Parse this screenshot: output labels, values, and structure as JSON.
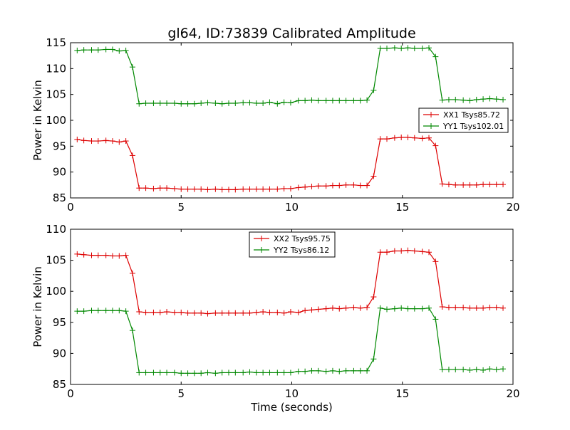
{
  "chart_data": [
    {
      "type": "line",
      "title": "gl64, ID:73839 Calibrated Amplitude",
      "xlabel": "",
      "ylabel": "Power in Kelvin",
      "xlim": [
        0,
        20
      ],
      "ylim": [
        85,
        115
      ],
      "xticks": [
        "0",
        "5",
        "10",
        "15",
        "20"
      ],
      "yticks": [
        "85",
        "90",
        "95",
        "100",
        "105",
        "110",
        "115"
      ],
      "grid": false,
      "legend_position": "center-right",
      "x": [
        0.3,
        0.6,
        0.95,
        1.25,
        1.6,
        1.9,
        2.2,
        2.5,
        2.8,
        3.1,
        3.4,
        3.75,
        4.05,
        4.35,
        4.7,
        5.0,
        5.3,
        5.6,
        5.9,
        6.2,
        6.55,
        6.85,
        7.15,
        7.45,
        7.8,
        8.1,
        8.4,
        8.7,
        9.0,
        9.35,
        9.65,
        9.95,
        10.3,
        10.6,
        10.9,
        11.2,
        11.55,
        11.85,
        12.15,
        12.45,
        12.8,
        13.1,
        13.4,
        13.7,
        14.0,
        14.3,
        14.65,
        14.95,
        15.25,
        15.55,
        15.9,
        16.2,
        16.5,
        16.8,
        17.1,
        17.4,
        17.75,
        18.05,
        18.35,
        18.65,
        18.95,
        19.25,
        19.55
      ],
      "series": [
        {
          "name": "XX1 Tsys85.72",
          "color": "#dd0000",
          "values": [
            96.3,
            96.1,
            96.0,
            96.0,
            96.1,
            96.0,
            95.8,
            96.0,
            93.2,
            86.9,
            86.9,
            86.8,
            86.9,
            86.9,
            86.8,
            86.7,
            86.7,
            86.7,
            86.7,
            86.6,
            86.7,
            86.6,
            86.6,
            86.6,
            86.7,
            86.7,
            86.7,
            86.7,
            86.7,
            86.7,
            86.8,
            86.8,
            87.0,
            87.1,
            87.2,
            87.3,
            87.3,
            87.4,
            87.4,
            87.5,
            87.5,
            87.4,
            87.4,
            89.2,
            96.4,
            96.4,
            96.6,
            96.7,
            96.7,
            96.6,
            96.5,
            96.6,
            95.1,
            87.7,
            87.6,
            87.5,
            87.5,
            87.5,
            87.5,
            87.6,
            87.6,
            87.6,
            87.6
          ]
        },
        {
          "name": "YY1 Tsys102.01",
          "color": "#008800",
          "values": [
            113.5,
            113.6,
            113.6,
            113.6,
            113.7,
            113.7,
            113.4,
            113.5,
            110.3,
            103.2,
            103.3,
            103.3,
            103.3,
            103.3,
            103.3,
            103.2,
            103.2,
            103.2,
            103.3,
            103.4,
            103.3,
            103.2,
            103.3,
            103.3,
            103.4,
            103.4,
            103.3,
            103.3,
            103.5,
            103.2,
            103.5,
            103.4,
            103.8,
            103.8,
            103.9,
            103.8,
            103.8,
            103.8,
            103.8,
            103.8,
            103.8,
            103.8,
            103.9,
            105.8,
            113.9,
            113.9,
            114.0,
            113.9,
            114.0,
            113.9,
            113.9,
            114.0,
            112.3,
            103.9,
            104.0,
            104.0,
            103.9,
            103.8,
            104.0,
            104.1,
            104.2,
            104.1,
            104.0
          ]
        }
      ]
    },
    {
      "type": "line",
      "title": "",
      "xlabel": "Time (seconds)",
      "ylabel": "Power in Kelvin",
      "xlim": [
        0,
        20
      ],
      "ylim": [
        85,
        110
      ],
      "xticks": [
        "0",
        "5",
        "10",
        "15",
        "20"
      ],
      "yticks": [
        "85",
        "90",
        "95",
        "100",
        "105",
        "110"
      ],
      "grid": false,
      "legend_position": "top-center",
      "x": [
        0.3,
        0.6,
        0.95,
        1.25,
        1.6,
        1.9,
        2.2,
        2.5,
        2.8,
        3.1,
        3.4,
        3.75,
        4.05,
        4.35,
        4.7,
        5.0,
        5.3,
        5.6,
        5.9,
        6.2,
        6.55,
        6.85,
        7.15,
        7.45,
        7.8,
        8.1,
        8.4,
        8.7,
        9.0,
        9.35,
        9.65,
        9.95,
        10.3,
        10.6,
        10.9,
        11.2,
        11.55,
        11.85,
        12.15,
        12.45,
        12.8,
        13.1,
        13.4,
        13.7,
        14.0,
        14.3,
        14.65,
        14.95,
        15.25,
        15.55,
        15.9,
        16.2,
        16.5,
        16.8,
        17.1,
        17.4,
        17.75,
        18.05,
        18.35,
        18.65,
        18.95,
        19.25,
        19.55
      ],
      "series": [
        {
          "name": "XX2 Tsys95.75",
          "color": "#dd0000",
          "values": [
            106.0,
            105.9,
            105.8,
            105.8,
            105.8,
            105.7,
            105.7,
            105.8,
            102.9,
            96.7,
            96.6,
            96.6,
            96.6,
            96.7,
            96.6,
            96.6,
            96.5,
            96.5,
            96.5,
            96.4,
            96.5,
            96.5,
            96.5,
            96.5,
            96.5,
            96.5,
            96.6,
            96.7,
            96.6,
            96.6,
            96.5,
            96.7,
            96.6,
            96.9,
            97.0,
            97.1,
            97.2,
            97.3,
            97.2,
            97.3,
            97.4,
            97.3,
            97.4,
            99.1,
            106.3,
            106.3,
            106.5,
            106.5,
            106.6,
            106.5,
            106.4,
            106.3,
            104.8,
            97.5,
            97.4,
            97.4,
            97.4,
            97.3,
            97.3,
            97.3,
            97.4,
            97.4,
            97.3
          ]
        },
        {
          "name": "YY2 Tsys86.12",
          "color": "#008800",
          "values": [
            96.8,
            96.8,
            96.9,
            96.9,
            96.9,
            96.9,
            96.9,
            96.8,
            93.7,
            86.9,
            86.9,
            86.9,
            86.9,
            86.9,
            86.9,
            86.8,
            86.8,
            86.8,
            86.8,
            86.9,
            86.8,
            86.9,
            86.9,
            86.9,
            86.9,
            87.0,
            86.9,
            86.9,
            86.9,
            86.9,
            86.9,
            86.9,
            87.1,
            87.1,
            87.2,
            87.2,
            87.1,
            87.2,
            87.1,
            87.2,
            87.2,
            87.2,
            87.2,
            89.1,
            97.3,
            97.1,
            97.2,
            97.3,
            97.2,
            97.2,
            97.2,
            97.3,
            95.5,
            87.4,
            87.4,
            87.4,
            87.4,
            87.3,
            87.4,
            87.3,
            87.5,
            87.4,
            87.5
          ]
        }
      ]
    }
  ]
}
